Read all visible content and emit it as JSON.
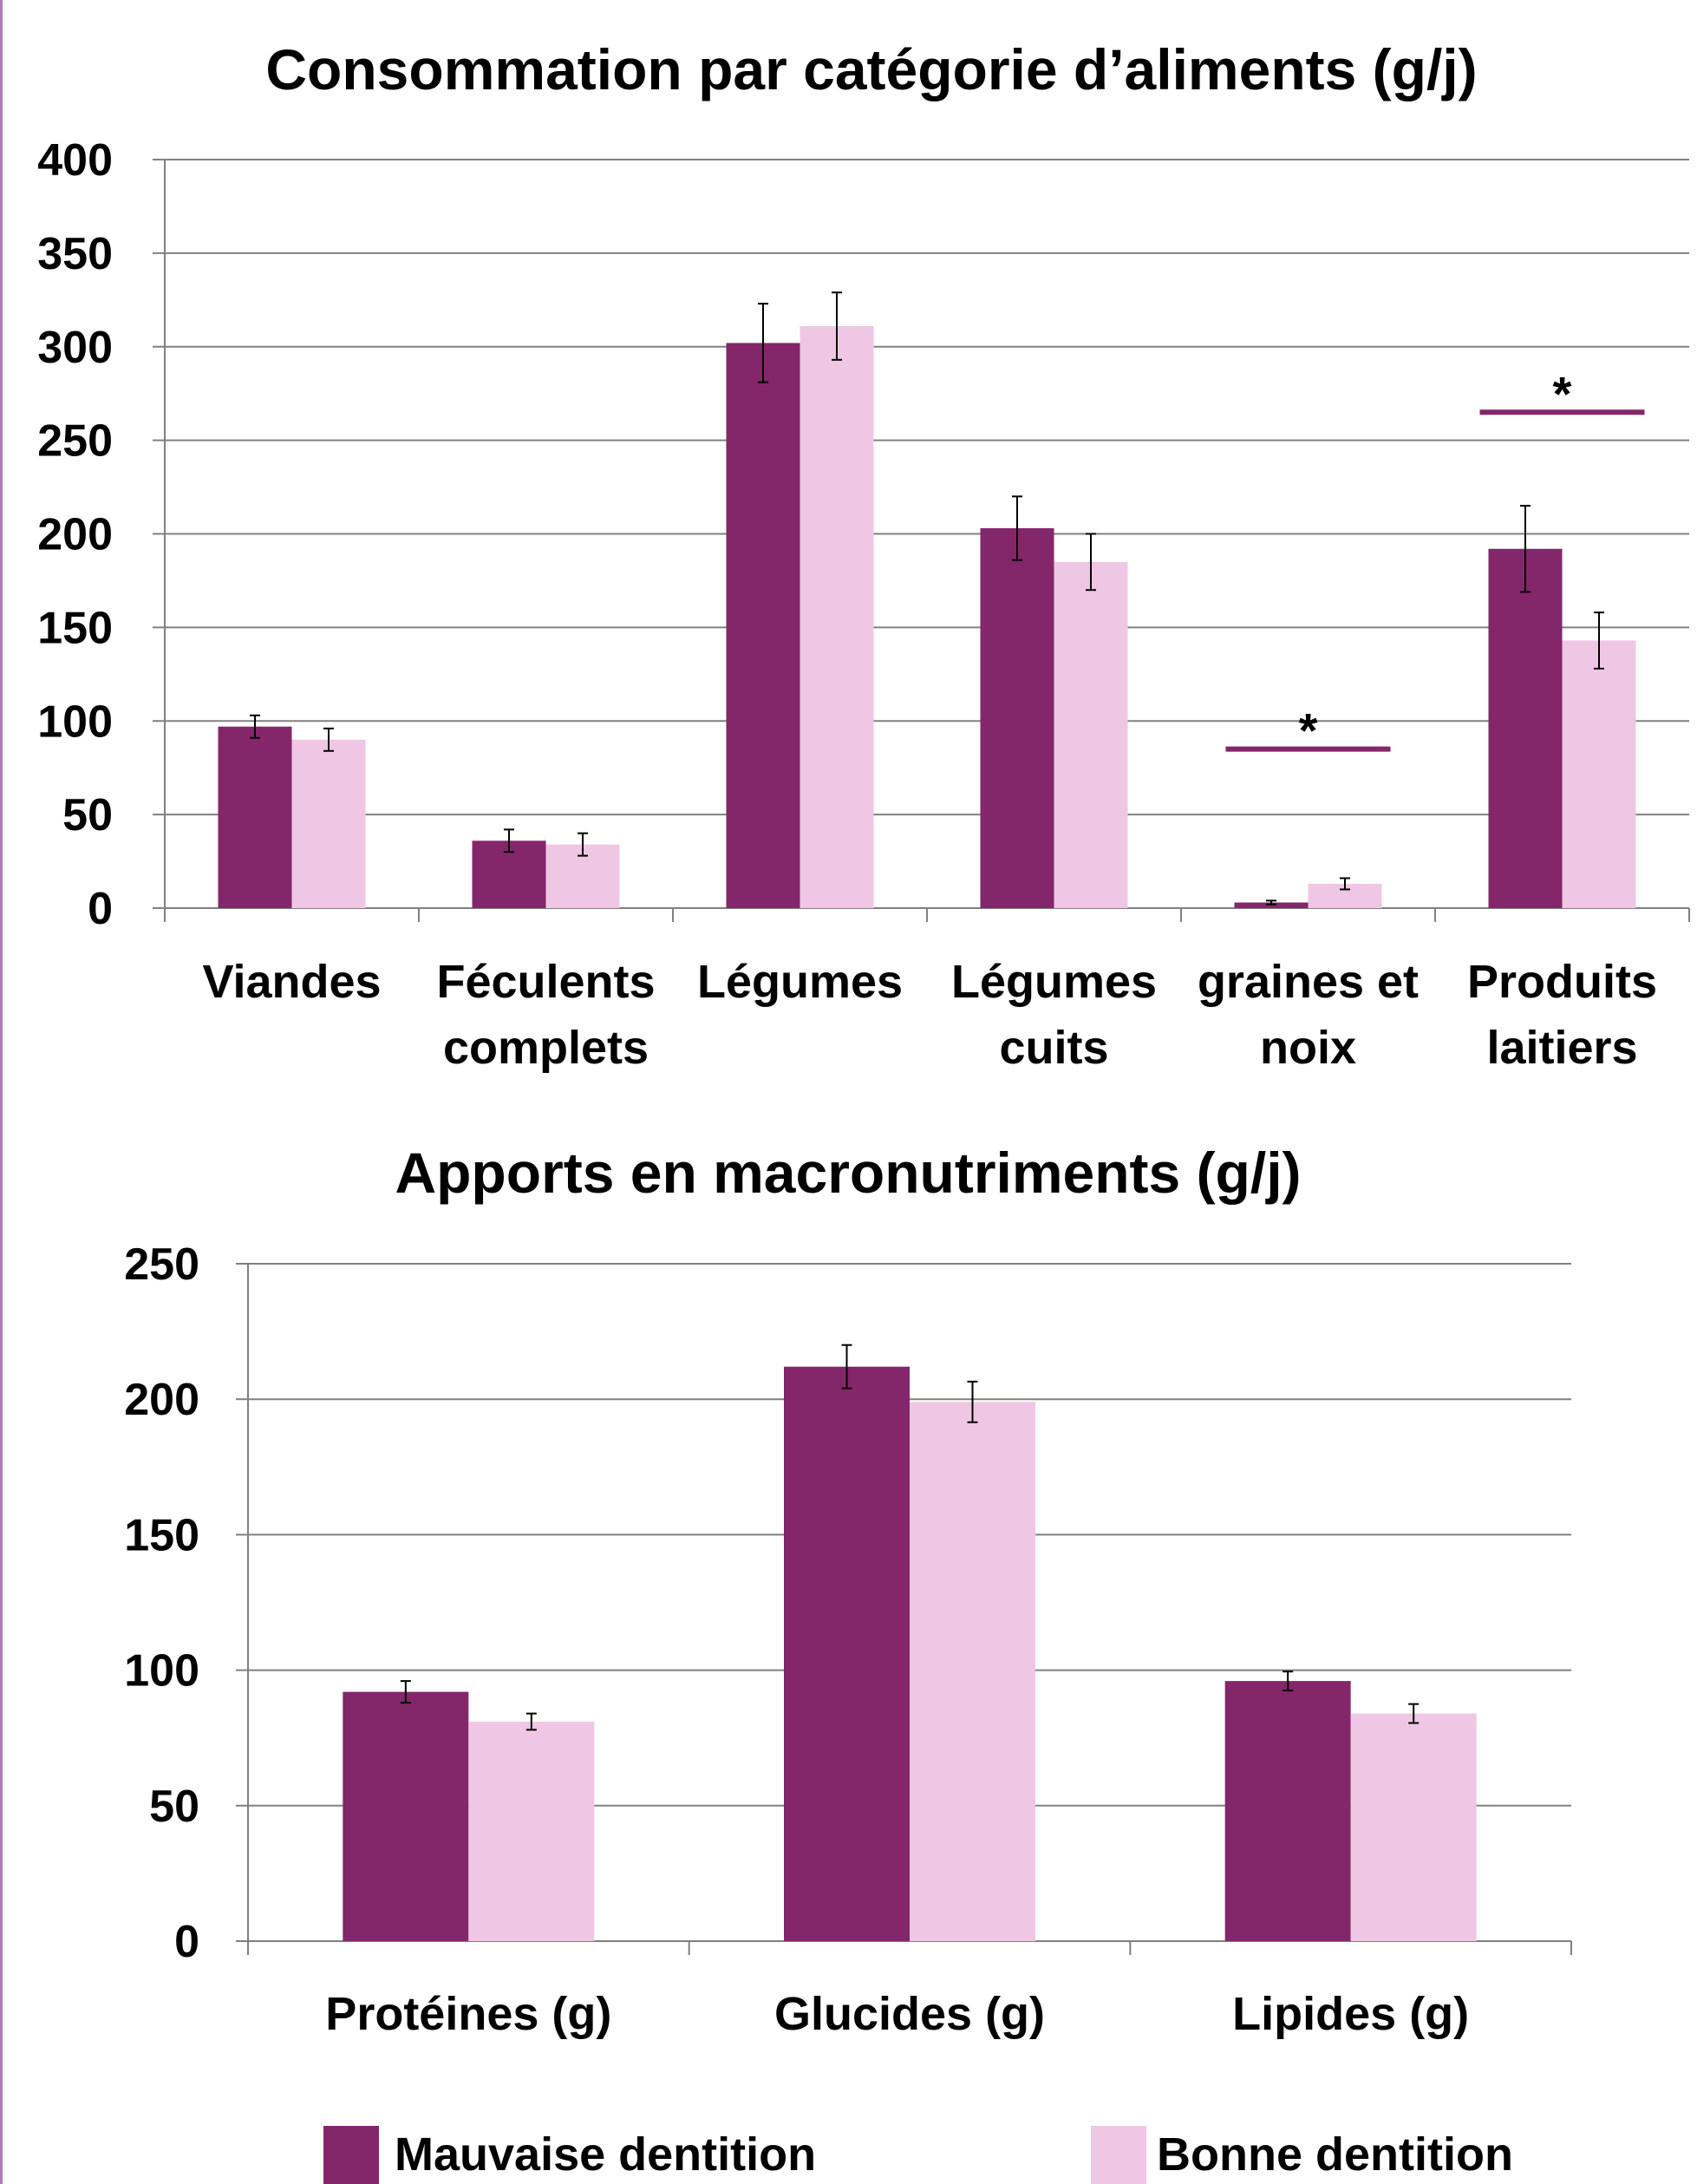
{
  "colors": {
    "mauvaise": "#84266A",
    "bonne": "#EFC7E4",
    "grid": "#808080",
    "axis": "#808080",
    "errorbar": "#000000",
    "left_rule": "#B07CB8"
  },
  "legend": {
    "items": [
      {
        "name": "Mauvaise dentition"
      },
      {
        "name": "Bonne dentition"
      }
    ]
  },
  "chart_data": [
    {
      "type": "bar",
      "title": "Consommation par catégorie d’aliments (g/j)",
      "xlabel": "",
      "ylabel": "",
      "ylim": [
        0,
        400
      ],
      "yticks": [
        "0",
        "50",
        "100",
        "150",
        "200",
        "250",
        "300",
        "350",
        "400"
      ],
      "grid": true,
      "legend": "bottom",
      "categories": [
        [
          "Viandes"
        ],
        [
          "Féculents",
          "complets"
        ],
        [
          "Légumes"
        ],
        [
          "Légumes",
          "cuits"
        ],
        [
          "graines et",
          "noix"
        ],
        [
          "Produits",
          "laitiers"
        ]
      ],
      "series": [
        {
          "name": "Mauvaise dentition",
          "values": [
            97,
            36,
            302,
            203,
            3,
            192
          ],
          "errors": [
            6,
            6,
            21,
            17,
            1,
            23
          ]
        },
        {
          "name": "Bonne dentition",
          "values": [
            90,
            34,
            311,
            185,
            13,
            143
          ],
          "errors": [
            6,
            6,
            18,
            15,
            3,
            15
          ]
        }
      ],
      "significance": [
        {
          "category_index": 4,
          "label": "*",
          "y": 85
        },
        {
          "category_index": 5,
          "label": "*",
          "y": 265
        }
      ]
    },
    {
      "type": "bar",
      "title": "Apports en macronutriments (g/j)",
      "xlabel": "",
      "ylabel": "",
      "ylim": [
        0,
        250
      ],
      "yticks": [
        "0",
        "50",
        "100",
        "150",
        "200",
        "250"
      ],
      "grid": true,
      "legend": "bottom",
      "categories": [
        [
          "Protéines (g)"
        ],
        [
          "Glucides (g)"
        ],
        [
          "Lipides (g)"
        ]
      ],
      "series": [
        {
          "name": "Mauvaise dentition",
          "values": [
            92,
            212,
            96
          ],
          "errors": [
            4,
            8,
            3.5
          ]
        },
        {
          "name": "Bonne dentition",
          "values": [
            81,
            199,
            84
          ],
          "errors": [
            3,
            7.5,
            3.5
          ]
        }
      ],
      "significance": []
    }
  ]
}
